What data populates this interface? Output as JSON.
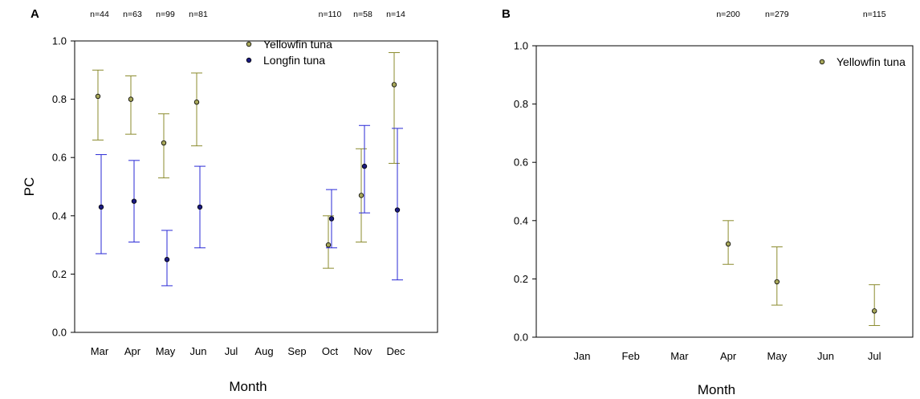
{
  "chart_data": [
    {
      "type": "scatter",
      "panel_label": "A",
      "xlabel": "Month",
      "ylabel": "PC",
      "ylim": [
        0,
        1
      ],
      "yticks": [
        "0.0",
        "0.2",
        "0.4",
        "0.6",
        "0.8",
        "1.0"
      ],
      "categories": [
        "Mar",
        "Apr",
        "May",
        "Jun",
        "Jul",
        "Aug",
        "Sep",
        "Oct",
        "Nov",
        "Dec"
      ],
      "sample_sizes": [
        {
          "month": "Mar",
          "label": "n=44"
        },
        {
          "month": "Apr",
          "label": "n=63"
        },
        {
          "month": "May",
          "label": "n=99"
        },
        {
          "month": "Jun",
          "label": "n=81"
        },
        {
          "month": "Oct",
          "label": "n=110"
        },
        {
          "month": "Nov",
          "label": "n=58"
        },
        {
          "month": "Dec",
          "label": "n=14"
        }
      ],
      "legend_position": "top-right",
      "series": [
        {
          "name": "Yellowfin tuna",
          "color": "#8b8b2e",
          "marker_fill": "#a7a75a",
          "points": [
            {
              "month": "Mar",
              "y": 0.81,
              "lo": 0.66,
              "hi": 0.9
            },
            {
              "month": "Apr",
              "y": 0.8,
              "lo": 0.68,
              "hi": 0.88
            },
            {
              "month": "May",
              "y": 0.65,
              "lo": 0.53,
              "hi": 0.75
            },
            {
              "month": "Jun",
              "y": 0.79,
              "lo": 0.64,
              "hi": 0.89
            },
            {
              "month": "Oct",
              "y": 0.3,
              "lo": 0.22,
              "hi": 0.4
            },
            {
              "month": "Nov",
              "y": 0.47,
              "lo": 0.31,
              "hi": 0.63
            },
            {
              "month": "Dec",
              "y": 0.85,
              "lo": 0.58,
              "hi": 0.96
            }
          ]
        },
        {
          "name": "Longfin tuna",
          "color": "#2a2ad6",
          "marker_fill": "#1a1a80",
          "points": [
            {
              "month": "Mar",
              "y": 0.43,
              "lo": 0.27,
              "hi": 0.61
            },
            {
              "month": "Apr",
              "y": 0.45,
              "lo": 0.31,
              "hi": 0.59
            },
            {
              "month": "May",
              "y": 0.25,
              "lo": 0.16,
              "hi": 0.35
            },
            {
              "month": "Jun",
              "y": 0.43,
              "lo": 0.29,
              "hi": 0.57
            },
            {
              "month": "Oct",
              "y": 0.39,
              "lo": 0.29,
              "hi": 0.49
            },
            {
              "month": "Nov",
              "y": 0.57,
              "lo": 0.41,
              "hi": 0.71
            },
            {
              "month": "Dec",
              "y": 0.42,
              "lo": 0.18,
              "hi": 0.7
            }
          ]
        }
      ]
    },
    {
      "type": "scatter",
      "panel_label": "B",
      "xlabel": "Month",
      "ylabel": "",
      "ylim": [
        0,
        1
      ],
      "yticks": [
        "0.0",
        "0.2",
        "0.4",
        "0.6",
        "0.8",
        "1.0"
      ],
      "categories": [
        "Jan",
        "Feb",
        "Mar",
        "Apr",
        "May",
        "Jun",
        "Jul"
      ],
      "sample_sizes": [
        {
          "month": "Apr",
          "label": "n=200"
        },
        {
          "month": "May",
          "label": "n=279"
        },
        {
          "month": "Jul",
          "label": "n=115"
        }
      ],
      "legend_position": "top-right",
      "series": [
        {
          "name": "Yellowfin tuna",
          "color": "#8b8b2e",
          "marker_fill": "#a7a75a",
          "points": [
            {
              "month": "Apr",
              "y": 0.32,
              "lo": 0.25,
              "hi": 0.4
            },
            {
              "month": "May",
              "y": 0.19,
              "lo": 0.11,
              "hi": 0.31
            },
            {
              "month": "Jul",
              "y": 0.09,
              "lo": 0.04,
              "hi": 0.18
            }
          ]
        }
      ]
    }
  ]
}
